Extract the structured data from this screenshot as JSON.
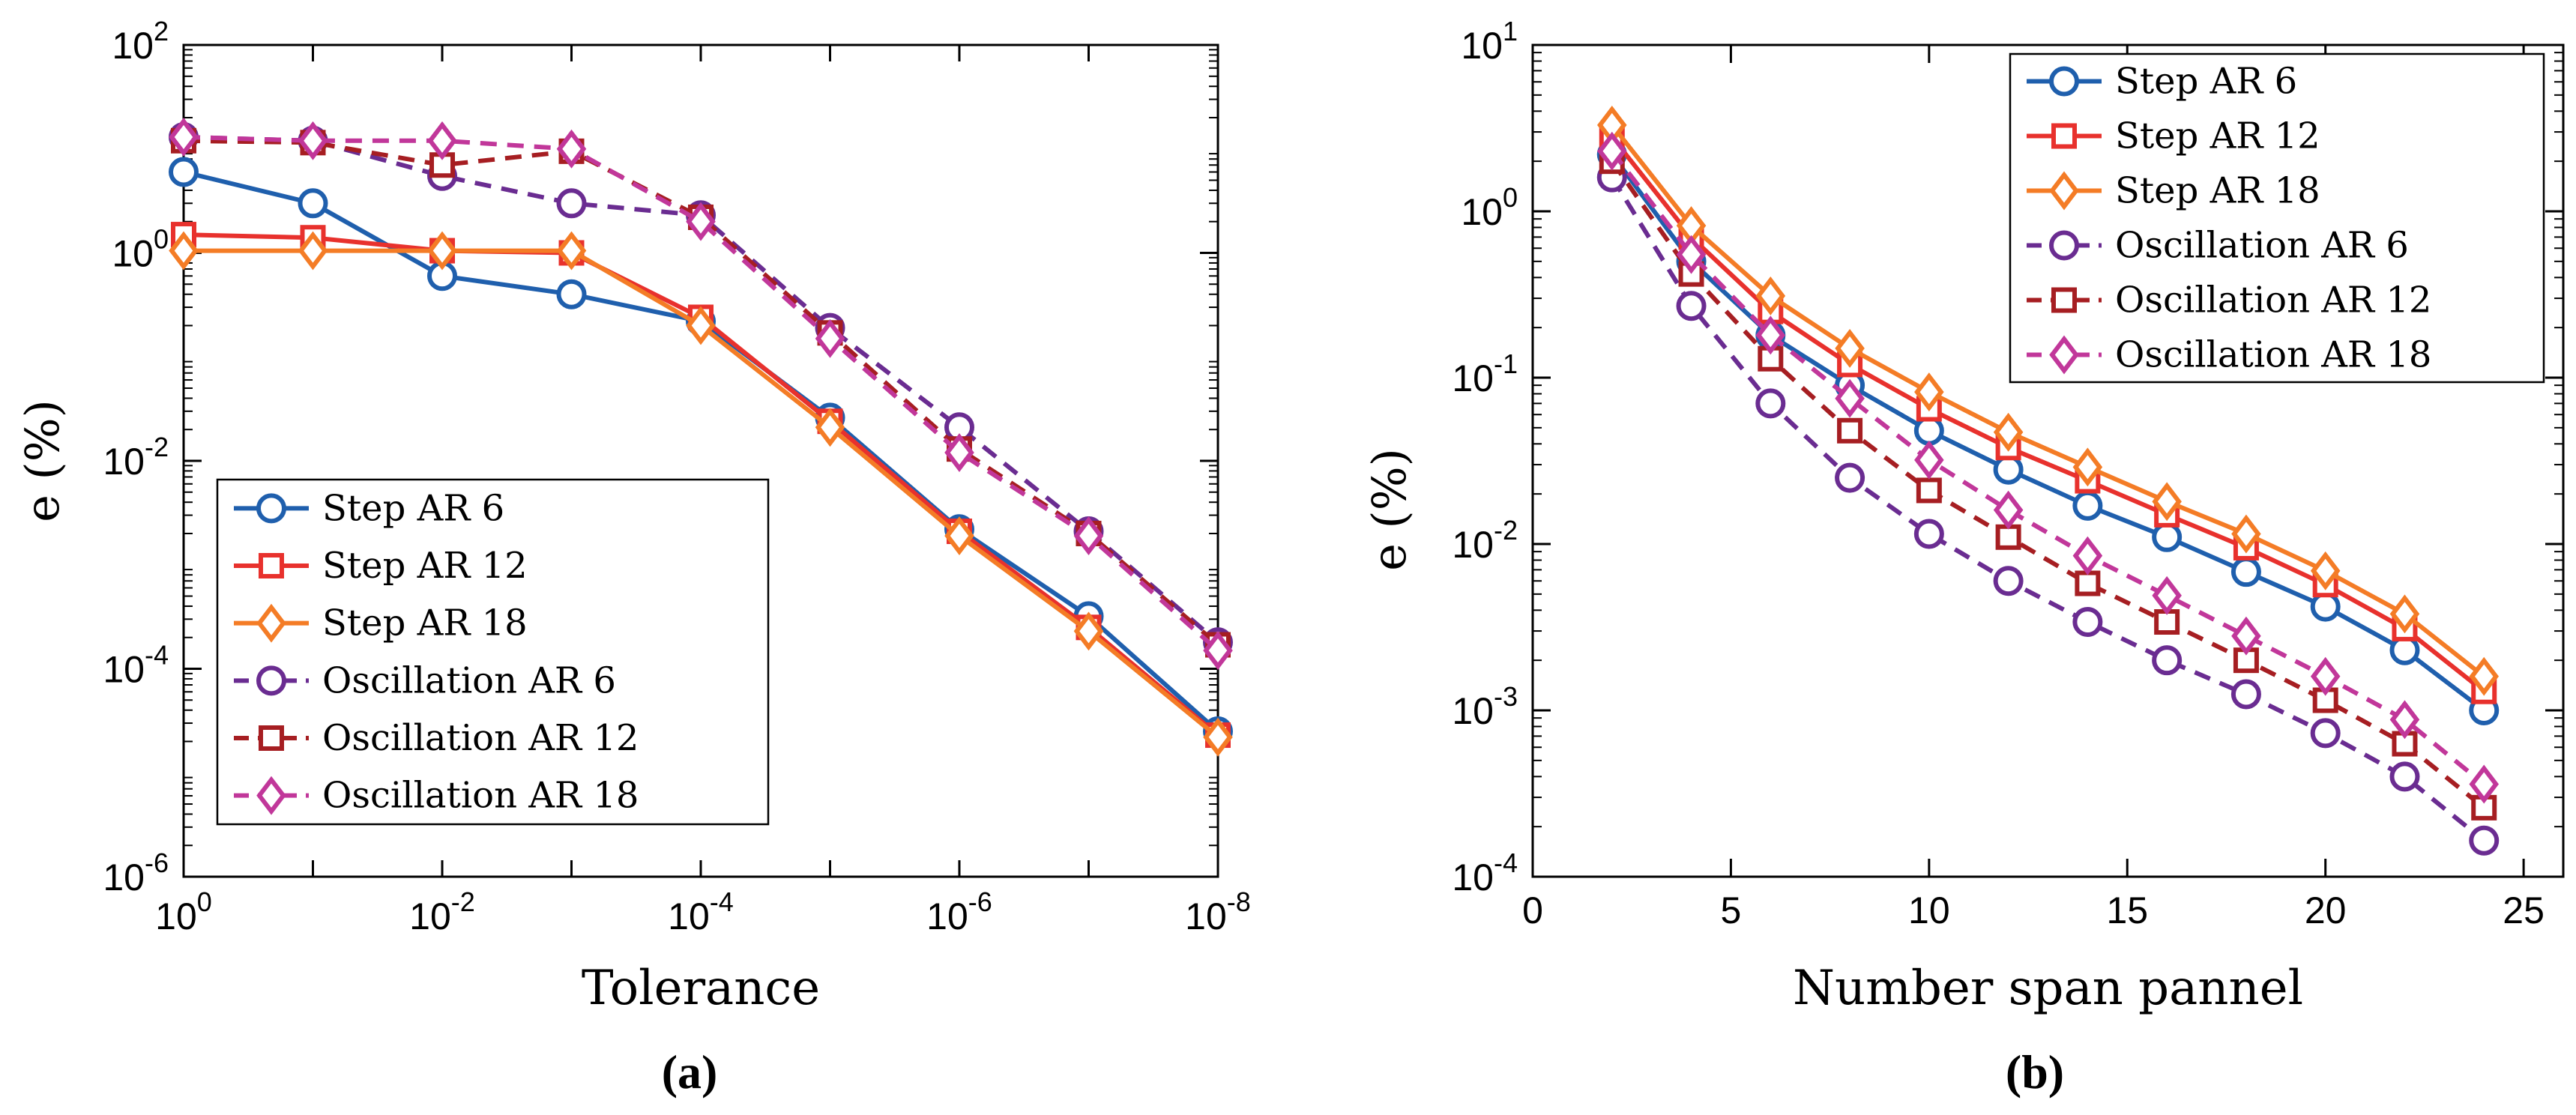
{
  "chart_data": [
    {
      "panel": "a",
      "caption": "(a)",
      "type": "line",
      "xscale": "log-reversed",
      "yscale": "log",
      "xlabel": "Tolerance",
      "ylabel": "e (%)",
      "x": [
        1,
        0.1,
        0.01,
        0.001,
        0.0001,
        1e-05,
        1e-06,
        1e-07,
        1e-08
      ],
      "xlim": [
        1,
        1e-08
      ],
      "ylim": [
        1e-06,
        100
      ],
      "xticks": [
        {
          "exp": "0",
          "v": 1
        },
        {
          "exp": "-2",
          "v": 0.01
        },
        {
          "exp": "-4",
          "v": 0.0001
        },
        {
          "exp": "-6",
          "v": 1e-06
        },
        {
          "exp": "-8",
          "v": 1e-08
        }
      ],
      "yticks": [
        {
          "exp": "2",
          "v": 100
        },
        {
          "exp": "0",
          "v": 1
        },
        {
          "exp": "-2",
          "v": 0.01
        },
        {
          "exp": "-4",
          "v": 0.0001
        },
        {
          "exp": "-6",
          "v": 1e-06
        }
      ],
      "tick_base": "10",
      "legend_position": "lower-left",
      "series": [
        {
          "name": "Step AR 6",
          "color": "#1f5fad",
          "dash": false,
          "marker": "circle",
          "values": [
            6.0,
            3.0,
            0.6,
            0.4,
            0.22,
            0.026,
            0.0022,
            0.00032,
            2.5e-05
          ]
        },
        {
          "name": "Step AR 12",
          "color": "#e8312d",
          "dash": false,
          "marker": "square",
          "values": [
            1.5,
            1.4,
            1.05,
            1.0,
            0.24,
            0.024,
            0.0021,
            0.00025,
            2.3e-05
          ]
        },
        {
          "name": "Step AR 18",
          "color": "#f47c26",
          "dash": false,
          "marker": "diamond",
          "values": [
            1.05,
            1.05,
            1.05,
            1.05,
            0.2,
            0.021,
            0.0019,
            0.00023,
            2.2e-05
          ]
        },
        {
          "name": "Oscillation AR 6",
          "color": "#6a2c91",
          "dash": true,
          "marker": "circle",
          "values": [
            13,
            12,
            5.5,
            3.0,
            2.3,
            0.19,
            0.021,
            0.0021,
            0.00018
          ]
        },
        {
          "name": "Oscillation AR 12",
          "color": "#a61e22",
          "dash": true,
          "marker": "square",
          "values": [
            12,
            11.5,
            7.0,
            9.5,
            2.2,
            0.17,
            0.013,
            0.002,
            0.00017
          ]
        },
        {
          "name": "Oscillation AR 18",
          "color": "#c1379a",
          "dash": true,
          "marker": "diamond",
          "values": [
            13,
            12,
            12,
            10,
            2.0,
            0.15,
            0.012,
            0.0019,
            0.00015
          ]
        }
      ]
    },
    {
      "panel": "b",
      "caption": "(b)",
      "type": "line",
      "xscale": "linear",
      "yscale": "log",
      "xlabel": "Number span pannel",
      "ylabel": "e (%)",
      "x": [
        2,
        4,
        6,
        8,
        10,
        12,
        14,
        16,
        18,
        20,
        22,
        24
      ],
      "xlim": [
        0,
        26
      ],
      "ylim": [
        0.0001,
        10
      ],
      "xticks": [
        {
          "label": "0",
          "v": 0
        },
        {
          "label": "5",
          "v": 5
        },
        {
          "label": "10",
          "v": 10
        },
        {
          "label": "15",
          "v": 15
        },
        {
          "label": "20",
          "v": 20
        },
        {
          "label": "25",
          "v": 25
        }
      ],
      "yticks": [
        {
          "exp": "1",
          "v": 10
        },
        {
          "exp": "0",
          "v": 1
        },
        {
          "exp": "-1",
          "v": 0.1
        },
        {
          "exp": "-2",
          "v": 0.01
        },
        {
          "exp": "-3",
          "v": 0.001
        },
        {
          "exp": "-4",
          "v": 0.0001
        }
      ],
      "tick_base": "10",
      "legend_position": "top-right",
      "series": [
        {
          "name": "Step AR 6",
          "color": "#1f5fad",
          "dash": false,
          "marker": "circle",
          "values": [
            2.2,
            0.5,
            0.18,
            0.09,
            0.048,
            0.028,
            0.017,
            0.011,
            0.0068,
            0.0042,
            0.0023,
            0.001
          ]
        },
        {
          "name": "Step AR 12",
          "color": "#e8312d",
          "dash": false,
          "marker": "square",
          "values": [
            2.8,
            0.7,
            0.25,
            0.12,
            0.065,
            0.038,
            0.024,
            0.015,
            0.0095,
            0.0057,
            0.0031,
            0.0013
          ]
        },
        {
          "name": "Step AR 18",
          "color": "#f47c26",
          "dash": false,
          "marker": "diamond",
          "values": [
            3.3,
            0.82,
            0.31,
            0.15,
            0.082,
            0.047,
            0.029,
            0.018,
            0.0115,
            0.0069,
            0.0038,
            0.0016
          ]
        },
        {
          "name": "Oscillation AR 6",
          "color": "#6a2c91",
          "dash": true,
          "marker": "circle",
          "values": [
            1.6,
            0.27,
            0.07,
            0.025,
            0.0115,
            0.006,
            0.0034,
            0.002,
            0.00125,
            0.00073,
            0.0004,
            0.000165
          ]
        },
        {
          "name": "Oscillation AR 12",
          "color": "#a61e22",
          "dash": true,
          "marker": "square",
          "values": [
            2.0,
            0.42,
            0.13,
            0.048,
            0.021,
            0.011,
            0.0058,
            0.0034,
            0.002,
            0.00115,
            0.00063,
            0.00026
          ]
        },
        {
          "name": "Oscillation AR 18",
          "color": "#c1379a",
          "dash": true,
          "marker": "diamond",
          "values": [
            2.3,
            0.55,
            0.18,
            0.075,
            0.032,
            0.016,
            0.0085,
            0.0049,
            0.0028,
            0.0016,
            0.00088,
            0.00036
          ]
        }
      ]
    }
  ]
}
